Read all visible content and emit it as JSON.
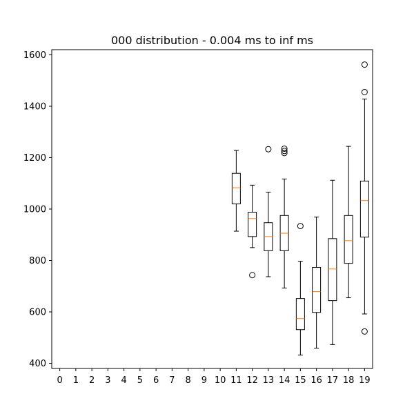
{
  "chart_data": {
    "type": "box",
    "title": "000 distribution - 0.004 ms to inf ms",
    "xlabel": "",
    "ylabel": "",
    "categories": [
      "0",
      "1",
      "2",
      "3",
      "4",
      "5",
      "6",
      "7",
      "8",
      "9",
      "10",
      "11",
      "12",
      "13",
      "14",
      "15",
      "16",
      "17",
      "18",
      "19"
    ],
    "ylim": [
      380,
      1620
    ],
    "yticks": [
      400,
      600,
      800,
      1000,
      1200,
      1400,
      1600
    ],
    "grid": false,
    "colors": {
      "box": "#000000",
      "median": "#ff7f0e",
      "outlier": "#000000"
    },
    "boxes": [
      {
        "category": "11",
        "whisker_low": 914,
        "q1": 1020,
        "median": 1083,
        "q3": 1139,
        "whisker_high": 1228,
        "outliers": []
      },
      {
        "category": "12",
        "whisker_low": 850,
        "q1": 893,
        "median": 963,
        "q3": 988,
        "whisker_high": 1093,
        "outliers": [
          743
        ]
      },
      {
        "category": "13",
        "whisker_low": 737,
        "q1": 838,
        "median": 893,
        "q3": 947,
        "whisker_high": 1066,
        "outliers": [
          1233
        ]
      },
      {
        "category": "14",
        "whisker_low": 693,
        "q1": 838,
        "median": 906,
        "q3": 975,
        "whisker_high": 1117,
        "outliers": [
          1235,
          1226,
          1218
        ]
      },
      {
        "category": "15",
        "whisker_low": 432,
        "q1": 531,
        "median": 574,
        "q3": 652,
        "whisker_high": 797,
        "outliers": [
          934
        ]
      },
      {
        "category": "16",
        "whisker_low": 459,
        "q1": 598,
        "median": 679,
        "q3": 773,
        "whisker_high": 969,
        "outliers": []
      },
      {
        "category": "17",
        "whisker_low": 473,
        "q1": 644,
        "median": 767,
        "q3": 885,
        "whisker_high": 1112,
        "outliers": []
      },
      {
        "category": "18",
        "whisker_low": 655,
        "q1": 789,
        "median": 877,
        "q3": 975,
        "whisker_high": 1244,
        "outliers": []
      },
      {
        "category": "19",
        "whisker_low": 592,
        "q1": 891,
        "median": 1033,
        "q3": 1109,
        "whisker_high": 1428,
        "outliers": [
          1562,
          1455,
          524
        ]
      }
    ]
  }
}
